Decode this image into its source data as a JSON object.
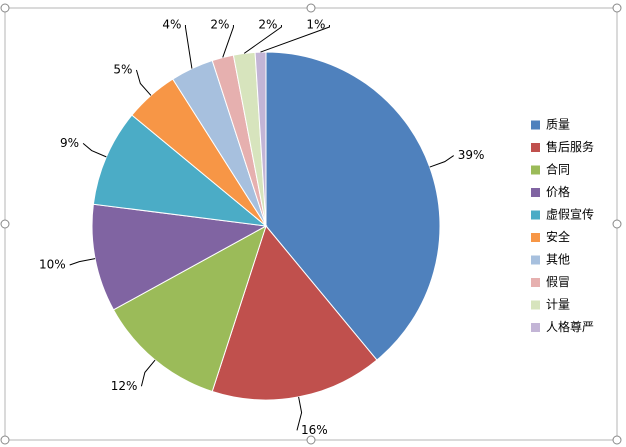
{
  "chart_data": {
    "type": "pie",
    "categories": [
      "质量",
      "售后服务",
      "合同",
      "价格",
      "虚假宣传",
      "安全",
      "其他",
      "假冒",
      "计量",
      "人格尊严"
    ],
    "values": [
      39,
      16,
      12,
      10,
      9,
      5,
      4,
      2,
      2,
      1
    ],
    "value_labels": [
      "39%",
      "16%",
      "12%",
      "10%",
      "9%",
      "5%",
      "4%",
      "2%",
      "2%",
      "1%"
    ],
    "colors": [
      "#4f81bd",
      "#c0504d",
      "#9bbb59",
      "#8064a2",
      "#4bacc6",
      "#f79646",
      "#a7c0de",
      "#e6b0af",
      "#d7e4bd",
      "#c3b5d6"
    ],
    "legend": "right"
  }
}
